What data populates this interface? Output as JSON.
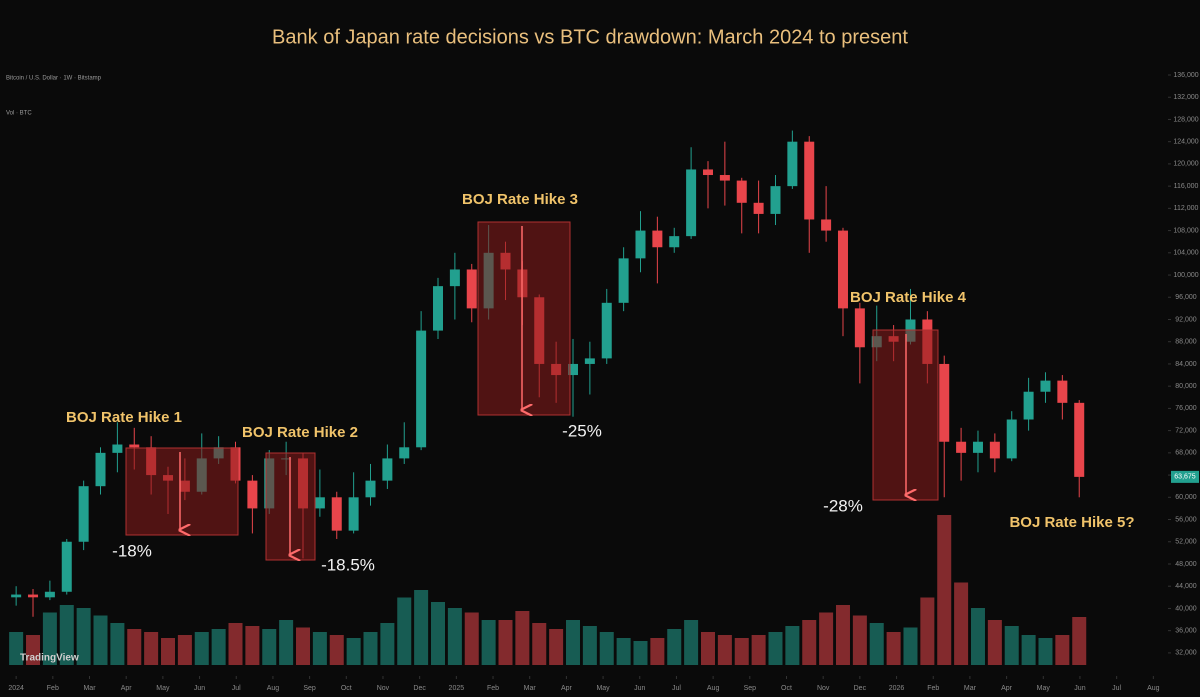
{
  "chart_data": {
    "type": "candlestick",
    "title": "Bank of Japan rate decisions vs BTC drawdown: March 2024 to present",
    "symbol": "Bitcoin / U.S. Dollar · 1W · Bitstamp",
    "volume_label": "Vol · BTC",
    "watermark": "TradingView",
    "up_color": "#22a08f",
    "down_color": "#e8454b",
    "x": [
      0,
      0.46,
      0.92,
      1.38,
      1.84,
      2.3,
      2.76,
      3.22,
      3.68,
      4.14,
      4.6,
      5.06,
      5.52,
      5.98,
      6.44,
      6.9,
      7.36,
      7.82,
      8.28,
      8.74,
      9.2,
      9.66,
      10.12,
      10.58,
      11.04,
      11.5,
      11.96,
      12.42,
      12.88,
      13.34,
      13.8,
      14.26,
      14.72,
      15.18,
      15.64,
      16.1,
      16.56,
      17.02,
      17.48,
      17.94,
      18.4,
      18.86,
      19.32,
      19.78,
      20.24,
      20.7,
      21.16,
      21.62,
      22.08,
      22.54,
      23,
      23.46,
      23.92,
      24.38,
      24.84,
      25.3,
      25.76,
      26.22,
      26.68,
      27.14,
      27.6,
      28.06,
      28.52,
      28.98
    ],
    "ohlc": [
      [
        42000,
        44000,
        40500,
        42500
      ],
      [
        42500,
        43500,
        38500,
        42000
      ],
      [
        42000,
        45000,
        41500,
        43000
      ],
      [
        43000,
        52500,
        42500,
        52000
      ],
      [
        52000,
        63000,
        50500,
        62000
      ],
      [
        62000,
        69000,
        60500,
        68000
      ],
      [
        68000,
        73500,
        64500,
        69500
      ],
      [
        69500,
        72500,
        65000,
        69000
      ],
      [
        69000,
        71000,
        60500,
        64000
      ],
      [
        64000,
        65500,
        57000,
        63000
      ],
      [
        63000,
        67000,
        59500,
        61000
      ],
      [
        61000,
        71500,
        60500,
        67000
      ],
      [
        67000,
        71000,
        66000,
        69000
      ],
      [
        69000,
        70000,
        62500,
        63000
      ],
      [
        63000,
        64000,
        53500,
        58000
      ],
      [
        58000,
        68500,
        57000,
        67000
      ],
      [
        67000,
        70000,
        64000,
        67000
      ],
      [
        67000,
        68000,
        49000,
        58000
      ],
      [
        58000,
        65000,
        56500,
        60000
      ],
      [
        60000,
        61000,
        52500,
        54000
      ],
      [
        54000,
        64500,
        53500,
        60000
      ],
      [
        60000,
        66000,
        58500,
        63000
      ],
      [
        63000,
        69500,
        61500,
        67000
      ],
      [
        67000,
        73500,
        66000,
        69000
      ],
      [
        69000,
        93500,
        68500,
        90000
      ],
      [
        90000,
        99500,
        88500,
        98000
      ],
      [
        98000,
        104000,
        92000,
        101000
      ],
      [
        101000,
        102000,
        91500,
        94000
      ],
      [
        94000,
        109000,
        92000,
        104000
      ],
      [
        104000,
        106000,
        95500,
        101000
      ],
      [
        101000,
        102500,
        91000,
        96000
      ],
      [
        96000,
        96500,
        78000,
        84000
      ],
      [
        84000,
        88000,
        77000,
        82000
      ],
      [
        82000,
        88500,
        74500,
        84000
      ],
      [
        84000,
        88000,
        78500,
        85000
      ],
      [
        85000,
        97500,
        84000,
        95000
      ],
      [
        95000,
        105000,
        93500,
        103000
      ],
      [
        103000,
        111500,
        100500,
        108000
      ],
      [
        108000,
        110500,
        98500,
        105000
      ],
      [
        105000,
        108500,
        104000,
        107000
      ],
      [
        107000,
        123000,
        106500,
        119000
      ],
      [
        119000,
        120500,
        112000,
        118000
      ],
      [
        118000,
        124000,
        112500,
        117000
      ],
      [
        117000,
        117500,
        107500,
        113000
      ],
      [
        113000,
        117000,
        107500,
        111000
      ],
      [
        111000,
        118000,
        109000,
        116000
      ],
      [
        116000,
        126000,
        115500,
        124000
      ],
      [
        124000,
        125000,
        104000,
        110000
      ],
      [
        110000,
        116000,
        106000,
        108000
      ],
      [
        108000,
        108500,
        89000,
        94000
      ],
      [
        94000,
        95000,
        80500,
        87000
      ],
      [
        87000,
        94500,
        84500,
        89000
      ],
      [
        89000,
        91000,
        84500,
        88000
      ],
      [
        88000,
        97500,
        87500,
        92000
      ],
      [
        92000,
        93500,
        80500,
        84000
      ],
      [
        84000,
        85500,
        60000,
        70000
      ],
      [
        70000,
        72500,
        63000,
        68000
      ],
      [
        68000,
        72000,
        64500,
        70000
      ],
      [
        70000,
        71500,
        64500,
        67000
      ],
      [
        67000,
        75500,
        66500,
        74000
      ],
      [
        74000,
        81500,
        72000,
        79000
      ],
      [
        79000,
        82500,
        77000,
        81000
      ],
      [
        81000,
        82000,
        74000,
        77000
      ],
      [
        77000,
        77500,
        60000,
        63675
      ]
    ],
    "volume": {
      "values": [
        22,
        20,
        35,
        40,
        38,
        33,
        28,
        24,
        22,
        18,
        20,
        22,
        24,
        28,
        26,
        24,
        30,
        25,
        22,
        20,
        18,
        22,
        28,
        45,
        50,
        42,
        38,
        35,
        30,
        30,
        36,
        28,
        24,
        30,
        26,
        22,
        18,
        16,
        18,
        24,
        30,
        22,
        20,
        18,
        20,
        22,
        26,
        30,
        35,
        40,
        33,
        28,
        22,
        25,
        45,
        100,
        55,
        38,
        30,
        26,
        20,
        18,
        20,
        32
      ],
      "ylim": [
        0,
        100
      ]
    },
    "last_price": {
      "value": 63675,
      "label": "63,675"
    },
    "xlim": [
      -0.44,
      31.4
    ],
    "xticks": [
      {
        "value": 0,
        "label": "2024"
      },
      {
        "value": 1,
        "label": "Feb"
      },
      {
        "value": 2,
        "label": "Mar"
      },
      {
        "value": 3,
        "label": "Apr"
      },
      {
        "value": 4,
        "label": "May"
      },
      {
        "value": 5,
        "label": "Jun"
      },
      {
        "value": 6,
        "label": "Jul"
      },
      {
        "value": 7,
        "label": "Aug"
      },
      {
        "value": 8,
        "label": "Sep"
      },
      {
        "value": 9,
        "label": "Oct"
      },
      {
        "value": 10,
        "label": "Nov"
      },
      {
        "value": 11,
        "label": "Dec"
      },
      {
        "value": 12,
        "label": "2025"
      },
      {
        "value": 13,
        "label": "Feb"
      },
      {
        "value": 14,
        "label": "Mar"
      },
      {
        "value": 15,
        "label": "Apr"
      },
      {
        "value": 16,
        "label": "May"
      },
      {
        "value": 17,
        "label": "Jun"
      },
      {
        "value": 18,
        "label": "Jul"
      },
      {
        "value": 19,
        "label": "Aug"
      },
      {
        "value": 20,
        "label": "Sep"
      },
      {
        "value": 21,
        "label": "Oct"
      },
      {
        "value": 22,
        "label": "Nov"
      },
      {
        "value": 23,
        "label": "Dec"
      },
      {
        "value": 24,
        "label": "2026"
      },
      {
        "value": 25,
        "label": "Feb"
      },
      {
        "value": 26,
        "label": "Mar"
      },
      {
        "value": 27,
        "label": "Apr"
      },
      {
        "value": 28,
        "label": "May"
      },
      {
        "value": 29,
        "label": "Jun"
      },
      {
        "value": 30,
        "label": "Jul"
      },
      {
        "value": 31,
        "label": "Aug"
      }
    ],
    "ylim": [
      30000,
      136000
    ],
    "yticks": [
      {
        "value": 136000,
        "label": "136,000"
      },
      {
        "value": 132000,
        "label": "132,000"
      },
      {
        "value": 128000,
        "label": "128,000"
      },
      {
        "value": 124000,
        "label": "124,000"
      },
      {
        "value": 120000,
        "label": "120,000"
      },
      {
        "value": 116000,
        "label": "116,000"
      },
      {
        "value": 112000,
        "label": "112,000"
      },
      {
        "value": 108000,
        "label": "108,000"
      },
      {
        "value": 104000,
        "label": "104,000"
      },
      {
        "value": 100000,
        "label": "100,000"
      },
      {
        "value": 96000,
        "label": "96,000"
      },
      {
        "value": 92000,
        "label": "92,000"
      },
      {
        "value": 88000,
        "label": "88,000"
      },
      {
        "value": 84000,
        "label": "84,000"
      },
      {
        "value": 80000,
        "label": "80,000"
      },
      {
        "value": 76000,
        "label": "76,000"
      },
      {
        "value": 72000,
        "label": "72,000"
      },
      {
        "value": 68000,
        "label": "68,000"
      },
      {
        "value": 64000,
        "label": "64,000"
      },
      {
        "value": 60000,
        "label": "60,000"
      },
      {
        "value": 56000,
        "label": "56,000"
      },
      {
        "value": 52000,
        "label": "52,000"
      },
      {
        "value": 48000,
        "label": "48,000"
      },
      {
        "value": 44000,
        "label": "44,000"
      },
      {
        "value": 40000,
        "label": "40,000"
      },
      {
        "value": 36000,
        "label": "36,000"
      },
      {
        "value": 32000,
        "label": "32,000"
      }
    ],
    "annotations": [
      "BOJ Rate Hike 1",
      "-18%",
      "BOJ Rate Hike 2",
      "-18.5%",
      "BOJ Rate Hike 3",
      "-25%",
      "BOJ Rate Hike 4",
      "-28%",
      "BOJ Rate Hike 5?"
    ]
  }
}
